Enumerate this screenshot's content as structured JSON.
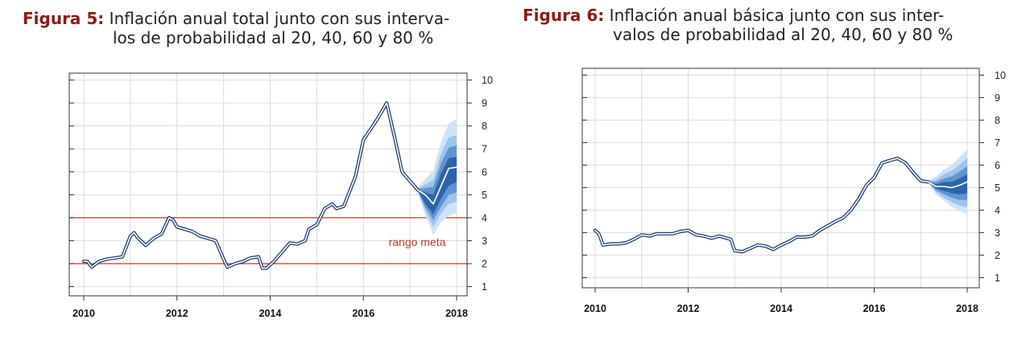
{
  "figures": [
    {
      "label": "Figura 5:",
      "caption_line1": "Inflación anual total junto con sus interva-",
      "caption_line2": "los de probabilidad al 20, 40, 60 y 80 %"
    },
    {
      "label": "Figura 6:",
      "caption_line1": "Inflación anual básica junto con sus inter-",
      "caption_line2": "valos de probabilidad al 20, 40, 60 y 80 %"
    }
  ],
  "colors": {
    "caption_label": "#8b1a1a",
    "line": "#1f3f6e",
    "target": "#c0392b",
    "fan": [
      "#cfe2f8",
      "#9cc4ec",
      "#5e95d2",
      "#2e63a8",
      "#123f80"
    ],
    "grid": "#dcdcdc",
    "axis": "#333333"
  },
  "chart_data": [
    {
      "type": "line",
      "title": "",
      "xlabel": "",
      "ylabel": "",
      "xlim": [
        2010,
        2018
      ],
      "ylim": [
        0.6,
        10.3
      ],
      "x_ticks": [
        "2010",
        "2012",
        "2014",
        "2016",
        "2018"
      ],
      "y_ticks": [
        "1",
        "2",
        "3",
        "4",
        "5",
        "6",
        "7",
        "8",
        "9",
        "10"
      ],
      "y_axis_side": "right",
      "grid": true,
      "target_band": [
        2,
        4
      ],
      "annotation": "rango meta",
      "series": [
        {
          "values": [
            [
              2010.0,
              2.1
            ],
            [
              2010.08,
              2.1
            ],
            [
              2010.17,
              1.85
            ],
            [
              2010.33,
              2.1
            ],
            [
              2010.5,
              2.2
            ],
            [
              2010.67,
              2.25
            ],
            [
              2010.83,
              2.3
            ],
            [
              2011.0,
              3.2
            ],
            [
              2011.08,
              3.35
            ],
            [
              2011.17,
              3.1
            ],
            [
              2011.33,
              2.8
            ],
            [
              2011.5,
              3.1
            ],
            [
              2011.67,
              3.3
            ],
            [
              2011.83,
              4.0
            ],
            [
              2011.92,
              3.9
            ],
            [
              2012.0,
              3.6
            ],
            [
              2012.17,
              3.5
            ],
            [
              2012.33,
              3.4
            ],
            [
              2012.5,
              3.2
            ],
            [
              2012.67,
              3.1
            ],
            [
              2012.83,
              3.0
            ],
            [
              2013.0,
              2.2
            ],
            [
              2013.08,
              1.85
            ],
            [
              2013.25,
              2.0
            ],
            [
              2013.42,
              2.1
            ],
            [
              2013.58,
              2.25
            ],
            [
              2013.75,
              2.3
            ],
            [
              2013.83,
              1.8
            ],
            [
              2013.92,
              1.8
            ],
            [
              2014.08,
              2.1
            ],
            [
              2014.25,
              2.5
            ],
            [
              2014.42,
              2.9
            ],
            [
              2014.58,
              2.85
            ],
            [
              2014.75,
              3.0
            ],
            [
              2014.83,
              3.5
            ],
            [
              2015.0,
              3.7
            ],
            [
              2015.17,
              4.4
            ],
            [
              2015.33,
              4.6
            ],
            [
              2015.42,
              4.4
            ],
            [
              2015.58,
              4.5
            ],
            [
              2015.83,
              5.8
            ],
            [
              2016.0,
              7.4
            ],
            [
              2016.17,
              7.9
            ],
            [
              2016.33,
              8.4
            ],
            [
              2016.5,
              9.0
            ],
            [
              2016.67,
              7.5
            ],
            [
              2016.83,
              6.0
            ],
            [
              2017.0,
              5.6
            ],
            [
              2017.17,
              5.2
            ]
          ]
        },
        {
          "name": "",
          "values": [
            [
              2017.17,
              5.2
            ],
            [
              2017.33,
              5.0
            ],
            [
              2017.5,
              4.6
            ],
            [
              2017.67,
              5.4
            ],
            [
              2017.83,
              6.15
            ],
            [
              2018.0,
              6.2
            ]
          ]
        }
      ],
      "fan": {
        "x": [
          2017.17,
          2017.33,
          2017.5,
          2017.67,
          2017.83,
          2018.0
        ],
        "p10": [
          5.1,
          4.1,
          3.25,
          3.8,
          4.1,
          4.2
        ],
        "p20": [
          5.12,
          4.3,
          3.6,
          4.2,
          4.6,
          4.7
        ],
        "p30": [
          5.15,
          4.45,
          3.9,
          4.5,
          5.0,
          5.1
        ],
        "p40": [
          5.18,
          4.6,
          4.15,
          4.85,
          5.4,
          5.55
        ],
        "p60": [
          5.22,
          5.1,
          5.0,
          5.95,
          6.6,
          6.65
        ],
        "p70": [
          5.25,
          5.3,
          5.35,
          6.4,
          7.05,
          7.15
        ],
        "p80": [
          5.28,
          5.45,
          5.65,
          6.8,
          7.5,
          7.6
        ],
        "p90": [
          5.3,
          5.7,
          6.05,
          7.35,
          8.1,
          8.3
        ]
      }
    },
    {
      "type": "line",
      "title": "",
      "xlabel": "",
      "ylabel": "",
      "xlim": [
        2010,
        2018
      ],
      "ylim": [
        0.55,
        10.3
      ],
      "x_ticks": [
        "2010",
        "2012",
        "2014",
        "2016",
        "2018"
      ],
      "y_ticks": [
        "1",
        "2",
        "3",
        "4",
        "5",
        "6",
        "7",
        "8",
        "9",
        "10"
      ],
      "y_axis_side": "right",
      "grid": true,
      "series": [
        {
          "values": [
            [
              2010.0,
              3.1
            ],
            [
              2010.08,
              2.95
            ],
            [
              2010.17,
              2.45
            ],
            [
              2010.33,
              2.5
            ],
            [
              2010.5,
              2.5
            ],
            [
              2010.67,
              2.55
            ],
            [
              2010.83,
              2.7
            ],
            [
              2011.0,
              2.9
            ],
            [
              2011.17,
              2.85
            ],
            [
              2011.33,
              2.95
            ],
            [
              2011.5,
              2.95
            ],
            [
              2011.67,
              2.95
            ],
            [
              2011.83,
              3.05
            ],
            [
              2012.0,
              3.1
            ],
            [
              2012.17,
              2.9
            ],
            [
              2012.33,
              2.85
            ],
            [
              2012.5,
              2.75
            ],
            [
              2012.67,
              2.85
            ],
            [
              2012.83,
              2.75
            ],
            [
              2012.92,
              2.7
            ],
            [
              2013.0,
              2.2
            ],
            [
              2013.17,
              2.15
            ],
            [
              2013.33,
              2.3
            ],
            [
              2013.5,
              2.45
            ],
            [
              2013.67,
              2.4
            ],
            [
              2013.83,
              2.25
            ],
            [
              2014.0,
              2.45
            ],
            [
              2014.17,
              2.6
            ],
            [
              2014.33,
              2.8
            ],
            [
              2014.5,
              2.8
            ],
            [
              2014.67,
              2.85
            ],
            [
              2014.83,
              3.1
            ],
            [
              2015.0,
              3.3
            ],
            [
              2015.17,
              3.5
            ],
            [
              2015.33,
              3.65
            ],
            [
              2015.5,
              4.0
            ],
            [
              2015.67,
              4.5
            ],
            [
              2015.83,
              5.1
            ],
            [
              2016.0,
              5.45
            ],
            [
              2016.17,
              6.1
            ],
            [
              2016.33,
              6.2
            ],
            [
              2016.5,
              6.3
            ],
            [
              2016.67,
              6.1
            ],
            [
              2016.83,
              5.7
            ],
            [
              2017.0,
              5.3
            ],
            [
              2017.17,
              5.25
            ]
          ]
        },
        {
          "name": "",
          "values": [
            [
              2017.17,
              5.25
            ],
            [
              2017.33,
              5.05
            ],
            [
              2017.5,
              5.05
            ],
            [
              2017.67,
              5.0
            ],
            [
              2017.83,
              5.1
            ],
            [
              2018.0,
              5.25
            ]
          ]
        }
      ],
      "fan": {
        "x": [
          2017.17,
          2017.33,
          2017.5,
          2017.67,
          2017.83,
          2018.0
        ],
        "p10": [
          5.2,
          4.7,
          4.4,
          4.15,
          3.95,
          3.85
        ],
        "p20": [
          5.21,
          4.8,
          4.55,
          4.35,
          4.2,
          4.15
        ],
        "p30": [
          5.22,
          4.88,
          4.7,
          4.55,
          4.45,
          4.45
        ],
        "p40": [
          5.23,
          4.96,
          4.85,
          4.75,
          4.7,
          4.75
        ],
        "p60": [
          5.27,
          5.15,
          5.25,
          5.25,
          5.4,
          5.6
        ],
        "p70": [
          5.28,
          5.25,
          5.4,
          5.5,
          5.7,
          5.95
        ],
        "p80": [
          5.29,
          5.35,
          5.6,
          5.75,
          6.0,
          6.3
        ],
        "p90": [
          5.3,
          5.5,
          5.8,
          6.0,
          6.35,
          6.7
        ]
      }
    }
  ]
}
